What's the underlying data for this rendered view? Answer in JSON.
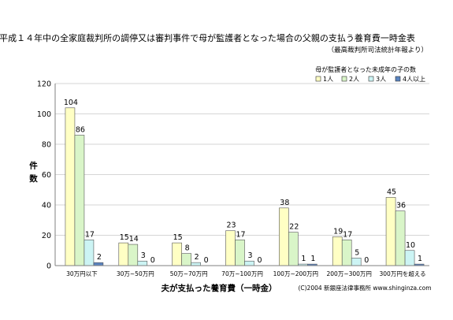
{
  "chart_data": {
    "type": "bar",
    "title": "平成１４年中の全家庭裁判所の調停又は審判事件で母が監護者となった場合の父親の支払う養育費一時金表",
    "subtitle": "（最高裁判所司法統計年報より）",
    "legend_title": "母が監護者となった未成年の子の数",
    "legend_position": "top-right",
    "xlabel": "夫が支払った養育費（一時金）",
    "ylabel": "件数",
    "ylim": [
      0,
      120
    ],
    "yticks": [
      0,
      20,
      40,
      60,
      80,
      100,
      120
    ],
    "grid": true,
    "categories": [
      "30万円以下",
      "30万~50万円",
      "50万~70万円",
      "70万~100万円",
      "100万~200万円",
      "200万~300万円",
      "300万円を超える"
    ],
    "series": [
      {
        "name": "1人",
        "color": "#ffffc4",
        "values": [
          104,
          15,
          15,
          23,
          38,
          19,
          45
        ]
      },
      {
        "name": "2人",
        "color": "#d9f5c8",
        "values": [
          86,
          14,
          8,
          17,
          22,
          17,
          36
        ]
      },
      {
        "name": "3人",
        "color": "#ccf4f4",
        "values": [
          17,
          3,
          2,
          3,
          1,
          5,
          10
        ]
      },
      {
        "name": "4人以上",
        "color": "#5a84c0",
        "values": [
          2,
          0,
          0,
          0,
          1,
          0,
          1
        ]
      }
    ],
    "credit": "(C)2004 新銀座法律事務所 www.shinginza.com"
  }
}
